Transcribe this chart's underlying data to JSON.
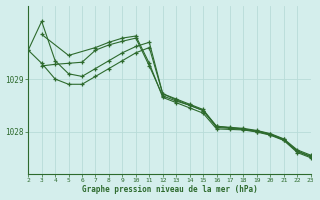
{
  "background_color": "#d4eeec",
  "grid_color": "#b8dbd8",
  "line_color": "#2d6a2d",
  "xlabel": "Graphe pression niveau de la mer (hPa)",
  "xlim": [
    2,
    23
  ],
  "ylim": [
    1027.2,
    1030.4
  ],
  "yticks": [
    1028,
    1029
  ],
  "xticks": [
    2,
    3,
    4,
    5,
    6,
    7,
    8,
    9,
    10,
    11,
    12,
    13,
    14,
    15,
    16,
    17,
    18,
    19,
    20,
    21,
    22,
    23
  ],
  "line1_x": [
    2,
    3,
    4,
    5,
    6,
    7,
    8,
    9,
    10,
    11,
    12,
    13,
    14,
    15,
    16,
    17,
    18,
    19,
    20,
    21,
    22,
    23
  ],
  "line1_y": [
    1029.55,
    1030.1,
    1029.35,
    1029.1,
    1029.05,
    1029.2,
    1029.35,
    1029.5,
    1029.62,
    1029.7,
    1028.72,
    1028.62,
    1028.52,
    1028.42,
    1028.1,
    1028.08,
    1028.06,
    1028.02,
    1027.96,
    1027.86,
    1027.65,
    1027.55
  ],
  "line2_x": [
    2,
    3,
    4,
    5,
    6,
    7,
    8,
    9,
    10,
    11,
    12,
    13,
    14,
    15,
    16,
    17,
    18,
    19,
    20,
    21,
    22,
    23
  ],
  "line2_y": [
    1029.55,
    1029.3,
    1029.0,
    1028.9,
    1028.9,
    1029.05,
    1029.2,
    1029.35,
    1029.5,
    1029.6,
    1028.72,
    1028.6,
    1028.5,
    1028.4,
    1028.08,
    1028.06,
    1028.04,
    1028.0,
    1027.94,
    1027.84,
    1027.62,
    1027.52
  ],
  "line3_x": [
    3,
    4,
    5,
    6,
    7,
    8,
    9,
    10,
    11,
    12,
    13,
    14,
    15,
    16,
    17,
    18,
    19,
    20,
    21,
    22,
    23
  ],
  "line3_y": [
    1029.25,
    1029.28,
    1029.3,
    1029.32,
    1029.55,
    1029.65,
    1029.72,
    1029.78,
    1029.25,
    1028.68,
    1028.58,
    1028.5,
    1028.4,
    1028.1,
    1028.07,
    1028.05,
    1028.01,
    1027.95,
    1027.85,
    1027.63,
    1027.53
  ],
  "line4_x": [
    3,
    5,
    7,
    8,
    9,
    10,
    11,
    12,
    13,
    14,
    15,
    16,
    17,
    18,
    19,
    20,
    21,
    22,
    23
  ],
  "line4_y": [
    1029.85,
    1029.45,
    1029.6,
    1029.7,
    1029.78,
    1029.82,
    1029.3,
    1028.65,
    1028.55,
    1028.45,
    1028.35,
    1028.05,
    1028.04,
    1028.03,
    1027.99,
    1027.93,
    1027.83,
    1027.6,
    1027.5
  ]
}
